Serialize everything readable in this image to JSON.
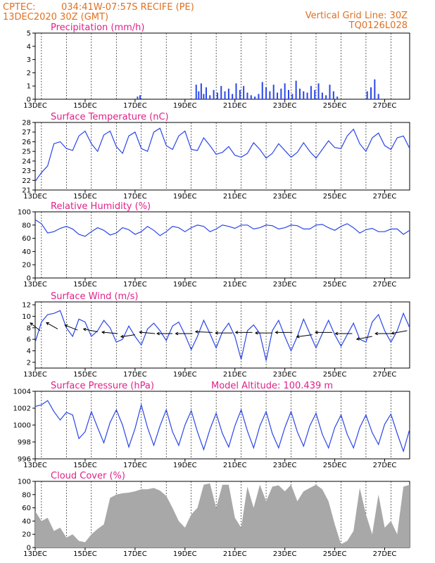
{
  "header": {
    "source": "CPTEC:",
    "location": "034:41W-07:57S   RECIFE (PE)",
    "date": "13DEC2020 30Z (GMT)",
    "grid_label": "Vertical Grid Line: 30Z",
    "code": "TQ0126L028"
  },
  "colors": {
    "line": "#2a46e8",
    "cloud": "#a8a8a8",
    "title": "#e0208a",
    "header": "#e07020"
  },
  "x_labels": [
    "13DEC",
    "15DEC",
    "17DEC",
    "19DEC",
    "21DEC",
    "23DEC",
    "25DEC",
    "27DEC"
  ],
  "x_days": [
    13,
    15,
    17,
    19,
    21,
    23,
    25,
    27
  ],
  "chart_data": [
    {
      "type": "bar",
      "title": "Precipitation (mm/h)",
      "ylim": [
        0,
        5
      ],
      "yticks": [
        0,
        1,
        2,
        3,
        4,
        5
      ],
      "grid": "vertical-dashed",
      "x": [
        17.1,
        17.2,
        19.45,
        19.55,
        19.65,
        19.75,
        19.85,
        20.0,
        20.15,
        20.3,
        20.45,
        20.6,
        20.75,
        20.9,
        21.05,
        21.2,
        21.35,
        21.5,
        21.65,
        21.8,
        21.95,
        22.1,
        22.25,
        22.4,
        22.55,
        22.7,
        22.85,
        23.0,
        23.15,
        23.3,
        23.45,
        23.6,
        23.75,
        23.9,
        24.05,
        24.2,
        24.35,
        24.5,
        24.65,
        24.8,
        24.95,
        25.1,
        26.3,
        26.45,
        26.6,
        26.75
      ],
      "values": [
        0.2,
        0.3,
        1.1,
        0.6,
        1.2,
        0.4,
        0.9,
        0.3,
        0.7,
        0.5,
        1.0,
        0.6,
        0.8,
        0.4,
        1.2,
        0.7,
        1.0,
        0.5,
        0.3,
        0.2,
        0.4,
        1.3,
        0.9,
        0.6,
        1.1,
        0.5,
        0.8,
        1.2,
        0.7,
        0.4,
        1.4,
        0.8,
        0.6,
        0.5,
        1.0,
        0.7,
        1.2,
        0.5,
        0.3,
        1.1,
        0.6,
        0.2,
        0.6,
        0.9,
        1.5,
        0.4
      ]
    },
    {
      "type": "line",
      "title": "Surface Temperature (nC)",
      "ylim": [
        21,
        28
      ],
      "yticks": [
        21,
        22,
        23,
        24,
        25,
        26,
        27,
        28
      ],
      "grid": "vertical-dashed",
      "x": [
        13.0,
        13.25,
        13.5,
        13.75,
        14.0,
        14.25,
        14.5,
        14.75,
        15.0,
        15.25,
        15.5,
        15.75,
        16.0,
        16.25,
        16.5,
        16.75,
        17.0,
        17.25,
        17.5,
        17.75,
        18.0,
        18.25,
        18.5,
        18.75,
        19.0,
        19.25,
        19.5,
        19.75,
        20.0,
        20.25,
        20.5,
        20.75,
        21.0,
        21.25,
        21.5,
        21.75,
        22.0,
        22.25,
        22.5,
        22.75,
        23.0,
        23.25,
        23.5,
        23.75,
        24.0,
        24.25,
        24.5,
        24.75,
        25.0,
        25.25,
        25.5,
        25.75,
        26.0,
        26.25,
        26.5,
        26.75,
        27.0,
        27.25,
        27.5,
        27.75,
        28.0
      ],
      "values": [
        21.9,
        22.8,
        23.5,
        25.8,
        26.0,
        25.3,
        25.1,
        26.6,
        27.1,
        25.8,
        25.0,
        26.7,
        27.1,
        25.5,
        24.8,
        26.6,
        27.0,
        25.3,
        25.0,
        27.0,
        27.4,
        25.6,
        25.2,
        26.6,
        27.1,
        25.2,
        25.1,
        26.4,
        25.6,
        24.7,
        24.9,
        25.5,
        24.6,
        24.4,
        24.8,
        25.9,
        25.2,
        24.3,
        24.8,
        25.8,
        25.1,
        24.4,
        24.9,
        25.9,
        25.0,
        24.3,
        25.2,
        26.1,
        25.4,
        25.3,
        26.6,
        27.3,
        25.8,
        25.0,
        26.4,
        26.9,
        25.6,
        25.2,
        26.4,
        26.6,
        25.3
      ]
    },
    {
      "type": "line",
      "title": "Relative Humidity (%)",
      "ylim": [
        0,
        100
      ],
      "yticks": [
        0,
        20,
        40,
        60,
        80,
        100
      ],
      "grid": "vertical-dashed",
      "x": [
        13.0,
        13.25,
        13.5,
        13.75,
        14.0,
        14.25,
        14.5,
        14.75,
        15.0,
        15.25,
        15.5,
        15.75,
        16.0,
        16.25,
        16.5,
        16.75,
        17.0,
        17.25,
        17.5,
        17.75,
        18.0,
        18.25,
        18.5,
        18.75,
        19.0,
        19.25,
        19.5,
        19.75,
        20.0,
        20.25,
        20.5,
        20.75,
        21.0,
        21.25,
        21.5,
        21.75,
        22.0,
        22.25,
        22.5,
        22.75,
        23.0,
        23.25,
        23.5,
        23.75,
        24.0,
        24.25,
        24.5,
        24.75,
        25.0,
        25.25,
        25.5,
        25.75,
        26.0,
        26.25,
        26.5,
        26.75,
        27.0,
        27.25,
        27.5,
        27.75,
        28.0
      ],
      "values": [
        88,
        82,
        68,
        70,
        75,
        78,
        74,
        66,
        63,
        70,
        76,
        72,
        65,
        68,
        76,
        73,
        66,
        70,
        78,
        72,
        64,
        70,
        78,
        76,
        70,
        76,
        80,
        78,
        70,
        74,
        80,
        78,
        75,
        80,
        80,
        74,
        76,
        80,
        79,
        74,
        76,
        80,
        79,
        74,
        74,
        80,
        81,
        76,
        72,
        78,
        82,
        76,
        68,
        73,
        75,
        70,
        70,
        74,
        74,
        66,
        72
      ]
    },
    {
      "type": "line",
      "title": "Surface Wind (m/s)",
      "ylim": [
        1,
        12.5
      ],
      "yticks": [
        2,
        4,
        6,
        8,
        10,
        12
      ],
      "grid": "vertical-dashed",
      "x": [
        13.0,
        13.25,
        13.5,
        13.75,
        14.0,
        14.25,
        14.5,
        14.75,
        15.0,
        15.25,
        15.5,
        15.75,
        16.0,
        16.25,
        16.5,
        16.75,
        17.0,
        17.25,
        17.5,
        17.75,
        18.0,
        18.25,
        18.5,
        18.75,
        19.0,
        19.25,
        19.5,
        19.75,
        20.0,
        20.25,
        20.5,
        20.75,
        21.0,
        21.25,
        21.5,
        21.75,
        22.0,
        22.25,
        22.5,
        22.75,
        23.0,
        23.25,
        23.5,
        23.75,
        24.0,
        24.25,
        24.5,
        24.75,
        25.0,
        25.25,
        25.5,
        25.75,
        26.0,
        26.25,
        26.5,
        26.75,
        27.0,
        27.25,
        27.5,
        27.75,
        28.0
      ],
      "values": [
        5.5,
        9.0,
        10.3,
        10.5,
        11.0,
        8.0,
        6.5,
        9.5,
        9.0,
        6.5,
        7.5,
        9.3,
        8.0,
        5.5,
        6.0,
        8.3,
        6.5,
        5.0,
        7.8,
        8.8,
        7.5,
        5.8,
        8.3,
        9.0,
        6.8,
        4.2,
        6.5,
        9.3,
        7.0,
        4.5,
        7.3,
        8.8,
        6.5,
        2.5,
        7.5,
        8.5,
        7.0,
        2.3,
        7.5,
        9.3,
        6.5,
        4.0,
        6.5,
        9.5,
        7.0,
        4.5,
        7.0,
        9.3,
        6.8,
        4.8,
        6.8,
        8.8,
        6.0,
        5.5,
        9.0,
        10.3,
        7.5,
        5.5,
        7.5,
        10.5,
        8.0
      ],
      "arrows": [
        {
          "x": 13.2,
          "y": 7.5,
          "dx": -14,
          "dy": -11
        },
        {
          "x": 13.9,
          "y": 7.8,
          "dx": -16,
          "dy": -9
        },
        {
          "x": 14.7,
          "y": 7.6,
          "dx": -18,
          "dy": -7
        },
        {
          "x": 15.5,
          "y": 7.3,
          "dx": -20,
          "dy": -4
        },
        {
          "x": 16.3,
          "y": 7.0,
          "dx": -22,
          "dy": -2
        },
        {
          "x": 17.0,
          "y": 6.8,
          "dx": -20,
          "dy": 3
        },
        {
          "x": 17.8,
          "y": 7.0,
          "dx": -22,
          "dy": -2
        },
        {
          "x": 18.5,
          "y": 7.0,
          "dx": -22,
          "dy": 0
        },
        {
          "x": 19.3,
          "y": 7.0,
          "dx": -24,
          "dy": 0
        },
        {
          "x": 20.1,
          "y": 7.2,
          "dx": -24,
          "dy": -1
        },
        {
          "x": 20.9,
          "y": 7.1,
          "dx": -24,
          "dy": 0
        },
        {
          "x": 21.7,
          "y": 7.2,
          "dx": -24,
          "dy": 0
        },
        {
          "x": 22.5,
          "y": 7.1,
          "dx": -24,
          "dy": 0
        },
        {
          "x": 23.3,
          "y": 7.2,
          "dx": -24,
          "dy": 0
        },
        {
          "x": 24.1,
          "y": 6.8,
          "dx": -22,
          "dy": 3
        },
        {
          "x": 24.9,
          "y": 7.2,
          "dx": -24,
          "dy": 0
        },
        {
          "x": 25.7,
          "y": 7.0,
          "dx": -24,
          "dy": 0
        },
        {
          "x": 26.5,
          "y": 6.5,
          "dx": -22,
          "dy": 4
        },
        {
          "x": 27.3,
          "y": 7.0,
          "dx": -24,
          "dy": 0
        },
        {
          "x": 27.9,
          "y": 7.5,
          "dx": -22,
          "dy": 4
        }
      ]
    },
    {
      "type": "line",
      "title": "Surface Pressure (hPa)",
      "annotation": "Model Altitude: 100.439  m",
      "ylim": [
        996,
        1004
      ],
      "yticks": [
        996,
        998,
        1000,
        1002,
        1004
      ],
      "grid": "vertical-dashed",
      "x": [
        13.0,
        13.25,
        13.5,
        13.75,
        14.0,
        14.25,
        14.5,
        14.75,
        15.0,
        15.25,
        15.5,
        15.75,
        16.0,
        16.25,
        16.5,
        16.75,
        17.0,
        17.25,
        17.5,
        17.75,
        18.0,
        18.25,
        18.5,
        18.75,
        19.0,
        19.25,
        19.5,
        19.75,
        20.0,
        20.25,
        20.5,
        20.75,
        21.0,
        21.25,
        21.5,
        21.75,
        22.0,
        22.25,
        22.5,
        22.75,
        23.0,
        23.25,
        23.5,
        23.75,
        24.0,
        24.25,
        24.5,
        24.75,
        25.0,
        25.25,
        25.5,
        25.75,
        26.0,
        26.25,
        26.5,
        26.75,
        27.0,
        27.25,
        27.5,
        27.75,
        28.0
      ],
      "values": [
        1002.2,
        1002.4,
        1002.9,
        1001.6,
        1000.6,
        1001.5,
        1001.2,
        998.4,
        999.2,
        1001.6,
        999.7,
        997.9,
        1000.3,
        1001.8,
        1000.0,
        997.4,
        999.6,
        1002.4,
        999.7,
        997.6,
        999.9,
        1001.8,
        999.2,
        997.6,
        1000.0,
        1001.7,
        999.2,
        997.1,
        999.5,
        1001.4,
        999.0,
        997.4,
        999.9,
        1001.8,
        999.3,
        997.3,
        999.9,
        1001.6,
        999.0,
        997.3,
        999.7,
        1001.6,
        999.2,
        997.5,
        999.9,
        1001.4,
        998.9,
        997.3,
        999.7,
        1001.2,
        998.9,
        997.3,
        999.7,
        1001.2,
        999.1,
        997.7,
        1000.1,
        1001.3,
        999.0,
        996.9,
        999.5
      ]
    },
    {
      "type": "area",
      "title": "Cloud Cover (%)",
      "ylim": [
        0,
        100
      ],
      "yticks": [
        0,
        20,
        40,
        60,
        80,
        100
      ],
      "grid": "vertical-dashed",
      "x": [
        13.0,
        13.25,
        13.5,
        13.75,
        14.0,
        14.25,
        14.5,
        14.75,
        15.0,
        15.25,
        15.5,
        15.75,
        16.0,
        16.25,
        16.5,
        16.75,
        17.0,
        17.25,
        17.5,
        17.75,
        18.0,
        18.25,
        18.5,
        18.75,
        19.0,
        19.25,
        19.5,
        19.75,
        20.0,
        20.25,
        20.5,
        20.75,
        21.0,
        21.25,
        21.5,
        21.75,
        22.0,
        22.25,
        22.5,
        22.75,
        23.0,
        23.25,
        23.5,
        23.75,
        24.0,
        24.25,
        24.5,
        24.75,
        25.0,
        25.25,
        25.5,
        25.75,
        26.0,
        26.25,
        26.5,
        26.75,
        27.0,
        27.25,
        27.5,
        27.75,
        28.0
      ],
      "values": [
        55,
        40,
        45,
        25,
        30,
        15,
        20,
        10,
        8,
        20,
        28,
        35,
        75,
        80,
        82,
        83,
        85,
        88,
        88,
        90,
        86,
        78,
        60,
        40,
        30,
        50,
        60,
        95,
        97,
        60,
        95,
        95,
        45,
        30,
        92,
        60,
        95,
        70,
        92,
        94,
        85,
        95,
        70,
        85,
        90,
        95,
        88,
        70,
        35,
        5,
        10,
        25,
        90,
        50,
        20,
        80,
        30,
        40,
        20,
        92,
        95
      ]
    }
  ]
}
